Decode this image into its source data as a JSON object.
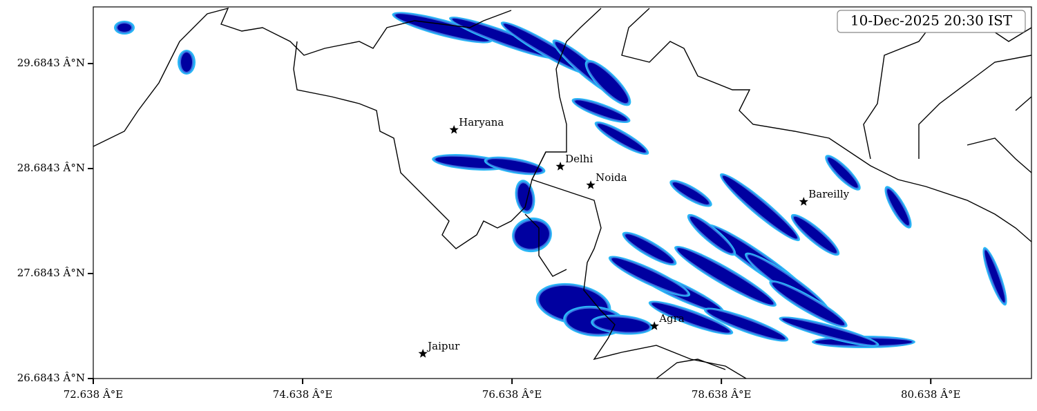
{
  "chart_data": {
    "type": "map",
    "timestamp": "10-Dec-2025 20:30 IST",
    "xlim": [
      72.638,
      81.6
    ],
    "ylim": [
      26.6843,
      30.224
    ],
    "xticks": [
      {
        "value": 72.638,
        "label": "72.638 Â°E"
      },
      {
        "value": 74.638,
        "label": "74.638 Â°E"
      },
      {
        "value": 76.638,
        "label": "76.638 Â°E"
      },
      {
        "value": 78.638,
        "label": "78.638 Â°E"
      },
      {
        "value": 80.638,
        "label": "80.638 Â°E"
      }
    ],
    "yticks": [
      {
        "value": 26.6843,
        "label": "26.6843 Â°N"
      },
      {
        "value": 27.6843,
        "label": "27.6843 Â°N"
      },
      {
        "value": 28.6843,
        "label": "28.6843 Â°N"
      },
      {
        "value": 29.6843,
        "label": "29.6843 Â°N"
      }
    ],
    "cities": [
      {
        "name": "Haryana",
        "lon": 76.084,
        "lat": 29.053
      },
      {
        "name": "Delhi",
        "lon": 77.1,
        "lat": 28.704
      },
      {
        "name": "Noida",
        "lon": 77.39,
        "lat": 28.526
      },
      {
        "name": "Bareilly",
        "lon": 79.424,
        "lat": 28.368
      },
      {
        "name": "Agra",
        "lon": 77.998,
        "lat": 27.184
      },
      {
        "name": "Jaipur",
        "lon": 75.787,
        "lat": 26.921
      }
    ]
  }
}
